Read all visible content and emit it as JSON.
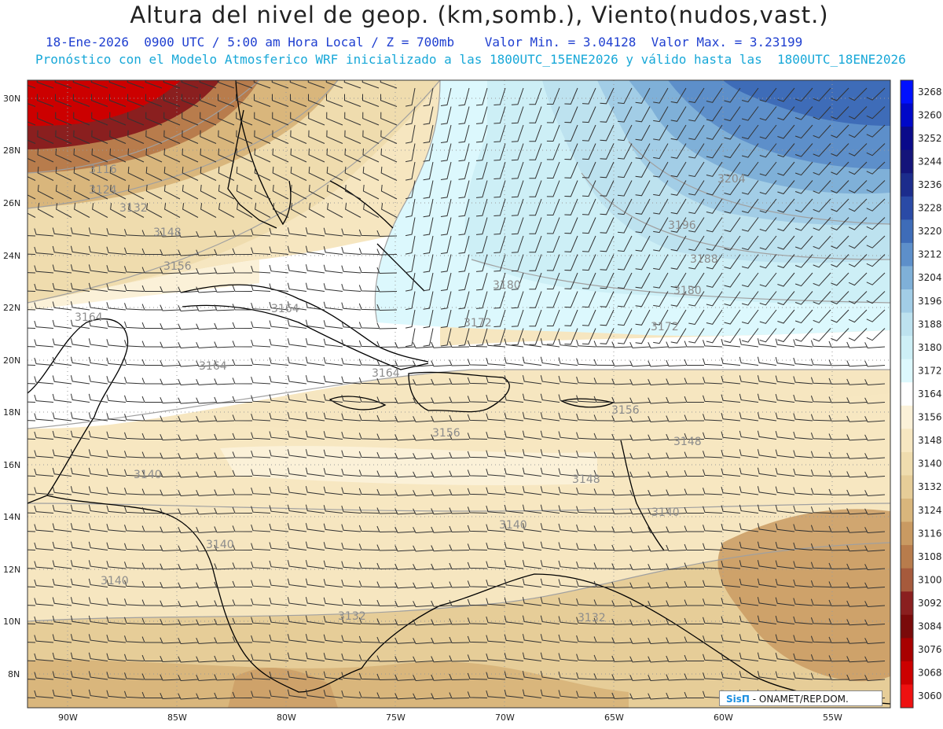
{
  "header": {
    "title": "Altura del nivel de geop. (km,somb.), Viento(nudos,vast.)",
    "subtitle_date": "18-Ene-2026  0900 UTC / 5:00 am Hora Local / Z = 700mb",
    "subtitle_values": "Valor Min. = 3.04128  Valor Max. = 3.23199",
    "subtitle_model": "Pronóstico con el Modelo Atmosferico WRF inicializado a las 1800UTC_15ENE2026 y válido hasta las  1800UTC_18ENE2026"
  },
  "colors": {
    "title": "#222222",
    "subtitle_date": "#1f3fd0",
    "subtitle_model": "#18a8d8",
    "coast": "#000000",
    "contour": "#a0a0a0",
    "barb": "#333333"
  },
  "map": {
    "lat_labels": [
      "30N",
      "28N",
      "26N",
      "24N",
      "22N",
      "20N",
      "18N",
      "16N",
      "14N",
      "12N",
      "10N",
      "8N"
    ],
    "lon_labels": [
      "90W",
      "85W",
      "80W",
      "75W",
      "70W",
      "65W",
      "60W",
      "55W"
    ],
    "contour_labels": [
      "3116",
      "3124",
      "3132",
      "3148",
      "3156",
      "3164",
      "3164",
      "3164",
      "3164",
      "3156",
      "3156",
      "3148",
      "3148",
      "3140",
      "3140",
      "3140",
      "3132",
      "3132",
      "3140",
      "3140",
      "3172",
      "3172",
      "3180",
      "3180",
      "3188",
      "3196",
      "3204"
    ]
  },
  "colorbar": {
    "levels": [
      {
        "label": "3268",
        "color": "#0010ff"
      },
      {
        "label": "3260",
        "color": "#0008c8"
      },
      {
        "label": "3252",
        "color": "#0a0a8a"
      },
      {
        "label": "3244",
        "color": "#14147a"
      },
      {
        "label": "3236",
        "color": "#1c2c8c"
      },
      {
        "label": "3228",
        "color": "#2a4aa6"
      },
      {
        "label": "3220",
        "color": "#3e6cb8"
      },
      {
        "label": "3212",
        "color": "#5d8fca"
      },
      {
        "label": "3204",
        "color": "#7fb0d8"
      },
      {
        "label": "3196",
        "color": "#a2cde6"
      },
      {
        "label": "3188",
        "color": "#bde2ef"
      },
      {
        "label": "3180",
        "color": "#cdeff6"
      },
      {
        "label": "3172",
        "color": "#dcf8fd"
      },
      {
        "label": "3164",
        "color": "#ffffff"
      },
      {
        "label": "3156",
        "color": "#fbf1d8"
      },
      {
        "label": "3148",
        "color": "#f7e7c1"
      },
      {
        "label": "3140",
        "color": "#efdcae"
      },
      {
        "label": "3132",
        "color": "#e6cd98"
      },
      {
        "label": "3124",
        "color": "#d9b67c"
      },
      {
        "label": "3116",
        "color": "#c99a62"
      },
      {
        "label": "3108",
        "color": "#b87c4c"
      },
      {
        "label": "3100",
        "color": "#a65a3c"
      },
      {
        "label": "3092",
        "color": "#8a1f1f"
      },
      {
        "label": "3084",
        "color": "#7a0a0a"
      },
      {
        "label": "3076",
        "color": "#a80000"
      },
      {
        "label": "3068",
        "color": "#cc0000"
      },
      {
        "label": "3060",
        "color": "#ee1111"
      }
    ]
  },
  "credit": {
    "logo": "SisΠ",
    "text": "- ONAMET/REP.DOM."
  }
}
